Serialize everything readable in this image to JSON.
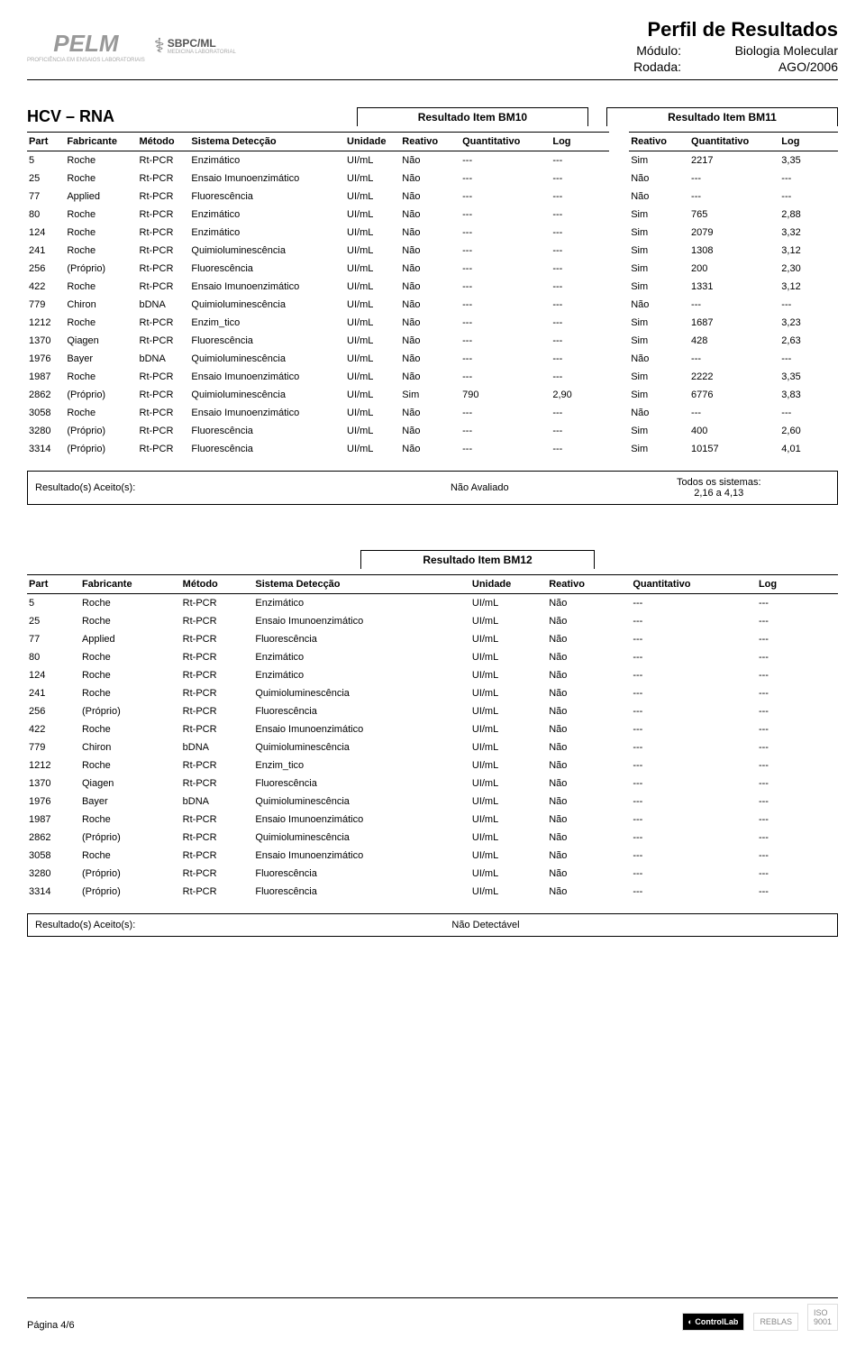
{
  "header": {
    "title": "Perfil de Resultados",
    "module_label": "Módulo:",
    "module_value": "Biologia Molecular",
    "round_label": "Rodada:",
    "round_value": "AGO/2006"
  },
  "section1": {
    "title": "HCV – RNA",
    "group_a_title": "Resultado Item BM10",
    "group_b_title": "Resultado Item BM11",
    "columns": {
      "part": "Part",
      "fabricante": "Fabricante",
      "metodo": "Método",
      "sistema": "Sistema Detecção",
      "unidade": "Unidade",
      "reativo": "Reativo",
      "quantitativo": "Quantitativo",
      "log": "Log"
    },
    "rows": [
      {
        "part": "5",
        "fab": "Roche",
        "met": "Rt-PCR",
        "sis": "Enzimático",
        "uni": "UI/mL",
        "a": {
          "rea": "Não",
          "qua": "---",
          "log": "---"
        },
        "b": {
          "rea": "Sim",
          "qua": "2217",
          "log": "3,35"
        }
      },
      {
        "part": "25",
        "fab": "Roche",
        "met": "Rt-PCR",
        "sis": "Ensaio Imunoenzimático",
        "uni": "UI/mL",
        "a": {
          "rea": "Não",
          "qua": "---",
          "log": "---"
        },
        "b": {
          "rea": "Não",
          "qua": "---",
          "log": "---"
        }
      },
      {
        "part": "77",
        "fab": "Applied",
        "met": "Rt-PCR",
        "sis": "Fluorescência",
        "uni": "UI/mL",
        "a": {
          "rea": "Não",
          "qua": "---",
          "log": "---"
        },
        "b": {
          "rea": "Não",
          "qua": "---",
          "log": "---"
        }
      },
      {
        "part": "80",
        "fab": "Roche",
        "met": "Rt-PCR",
        "sis": "Enzimático",
        "uni": "UI/mL",
        "a": {
          "rea": "Não",
          "qua": "---",
          "log": "---"
        },
        "b": {
          "rea": "Sim",
          "qua": "765",
          "log": "2,88"
        }
      },
      {
        "part": "124",
        "fab": "Roche",
        "met": "Rt-PCR",
        "sis": "Enzimático",
        "uni": "UI/mL",
        "a": {
          "rea": "Não",
          "qua": "---",
          "log": "---"
        },
        "b": {
          "rea": "Sim",
          "qua": "2079",
          "log": "3,32"
        }
      },
      {
        "part": "241",
        "fab": "Roche",
        "met": "Rt-PCR",
        "sis": "Quimioluminescência",
        "uni": "UI/mL",
        "a": {
          "rea": "Não",
          "qua": "---",
          "log": "---"
        },
        "b": {
          "rea": "Sim",
          "qua": "1308",
          "log": "3,12"
        }
      },
      {
        "part": "256",
        "fab": "(Próprio)",
        "met": "Rt-PCR",
        "sis": "Fluorescência",
        "uni": "UI/mL",
        "a": {
          "rea": "Não",
          "qua": "---",
          "log": "---"
        },
        "b": {
          "rea": "Sim",
          "qua": "200",
          "log": "2,30"
        }
      },
      {
        "part": "422",
        "fab": "Roche",
        "met": "Rt-PCR",
        "sis": "Ensaio Imunoenzimático",
        "uni": "UI/mL",
        "a": {
          "rea": "Não",
          "qua": "---",
          "log": "---"
        },
        "b": {
          "rea": "Sim",
          "qua": "1331",
          "log": "3,12"
        }
      },
      {
        "part": "779",
        "fab": "Chiron",
        "met": "bDNA",
        "sis": "Quimioluminescência",
        "uni": "UI/mL",
        "a": {
          "rea": "Não",
          "qua": "---",
          "log": "---"
        },
        "b": {
          "rea": "Não",
          "qua": "---",
          "log": "---"
        }
      },
      {
        "part": "1212",
        "fab": "Roche",
        "met": "Rt-PCR",
        "sis": "Enzim_tico",
        "uni": "UI/mL",
        "a": {
          "rea": "Não",
          "qua": "---",
          "log": "---"
        },
        "b": {
          "rea": "Sim",
          "qua": "1687",
          "log": "3,23"
        }
      },
      {
        "part": "1370",
        "fab": "Qiagen",
        "met": "Rt-PCR",
        "sis": "Fluorescência",
        "uni": "UI/mL",
        "a": {
          "rea": "Não",
          "qua": "---",
          "log": "---"
        },
        "b": {
          "rea": "Sim",
          "qua": "428",
          "log": "2,63"
        }
      },
      {
        "part": "1976",
        "fab": "Bayer",
        "met": "bDNA",
        "sis": "Quimioluminescência",
        "uni": "UI/mL",
        "a": {
          "rea": "Não",
          "qua": "---",
          "log": "---"
        },
        "b": {
          "rea": "Não",
          "qua": "---",
          "log": "---"
        }
      },
      {
        "part": "1987",
        "fab": "Roche",
        "met": "Rt-PCR",
        "sis": "Ensaio Imunoenzimático",
        "uni": "UI/mL",
        "a": {
          "rea": "Não",
          "qua": "---",
          "log": "---"
        },
        "b": {
          "rea": "Sim",
          "qua": "2222",
          "log": "3,35"
        }
      },
      {
        "part": "2862",
        "fab": "(Próprio)",
        "met": "Rt-PCR",
        "sis": "Quimioluminescência",
        "uni": "UI/mL",
        "a": {
          "rea": "Sim",
          "qua": "790",
          "log": "2,90"
        },
        "b": {
          "rea": "Sim",
          "qua": "6776",
          "log": "3,83"
        }
      },
      {
        "part": "3058",
        "fab": "Roche",
        "met": "Rt-PCR",
        "sis": "Ensaio Imunoenzimático",
        "uni": "UI/mL",
        "a": {
          "rea": "Não",
          "qua": "---",
          "log": "---"
        },
        "b": {
          "rea": "Não",
          "qua": "---",
          "log": "---"
        }
      },
      {
        "part": "3280",
        "fab": "(Próprio)",
        "met": "Rt-PCR",
        "sis": "Fluorescência",
        "uni": "UI/mL",
        "a": {
          "rea": "Não",
          "qua": "---",
          "log": "---"
        },
        "b": {
          "rea": "Sim",
          "qua": "400",
          "log": "2,60"
        }
      },
      {
        "part": "3314",
        "fab": "(Próprio)",
        "met": "Rt-PCR",
        "sis": "Fluorescência",
        "uni": "UI/mL",
        "a": {
          "rea": "Não",
          "qua": "---",
          "log": "---"
        },
        "b": {
          "rea": "Sim",
          "qua": "10157",
          "log": "4,01"
        }
      }
    ],
    "accepted": {
      "label": "Resultado(s) Aceito(s):",
      "mid": "Não Avaliado",
      "right_line1": "Todos os sistemas:",
      "right_line2": "2,16 a 4,13"
    }
  },
  "section2": {
    "group_title": "Resultado Item BM12",
    "columns": {
      "part": "Part",
      "fabricante": "Fabricante",
      "metodo": "Método",
      "sistema": "Sistema Detecção",
      "unidade": "Unidade",
      "reativo": "Reativo",
      "quantitativo": "Quantitativo",
      "log": "Log"
    },
    "rows": [
      {
        "part": "5",
        "fab": "Roche",
        "met": "Rt-PCR",
        "sis": "Enzimático",
        "uni": "UI/mL",
        "rea": "Não",
        "qua": "---",
        "log": "---"
      },
      {
        "part": "25",
        "fab": "Roche",
        "met": "Rt-PCR",
        "sis": "Ensaio Imunoenzimático",
        "uni": "UI/mL",
        "rea": "Não",
        "qua": "---",
        "log": "---"
      },
      {
        "part": "77",
        "fab": "Applied",
        "met": "Rt-PCR",
        "sis": "Fluorescência",
        "uni": "UI/mL",
        "rea": "Não",
        "qua": "---",
        "log": "---"
      },
      {
        "part": "80",
        "fab": "Roche",
        "met": "Rt-PCR",
        "sis": "Enzimático",
        "uni": "UI/mL",
        "rea": "Não",
        "qua": "---",
        "log": "---"
      },
      {
        "part": "124",
        "fab": "Roche",
        "met": "Rt-PCR",
        "sis": "Enzimático",
        "uni": "UI/mL",
        "rea": "Não",
        "qua": "---",
        "log": "---"
      },
      {
        "part": "241",
        "fab": "Roche",
        "met": "Rt-PCR",
        "sis": "Quimioluminescência",
        "uni": "UI/mL",
        "rea": "Não",
        "qua": "---",
        "log": "---"
      },
      {
        "part": "256",
        "fab": "(Próprio)",
        "met": "Rt-PCR",
        "sis": "Fluorescência",
        "uni": "UI/mL",
        "rea": "Não",
        "qua": "---",
        "log": "---"
      },
      {
        "part": "422",
        "fab": "Roche",
        "met": "Rt-PCR",
        "sis": "Ensaio Imunoenzimático",
        "uni": "UI/mL",
        "rea": "Não",
        "qua": "---",
        "log": "---"
      },
      {
        "part": "779",
        "fab": "Chiron",
        "met": "bDNA",
        "sis": "Quimioluminescência",
        "uni": "UI/mL",
        "rea": "Não",
        "qua": "---",
        "log": "---"
      },
      {
        "part": "1212",
        "fab": "Roche",
        "met": "Rt-PCR",
        "sis": "Enzim_tico",
        "uni": "UI/mL",
        "rea": "Não",
        "qua": "---",
        "log": "---"
      },
      {
        "part": "1370",
        "fab": "Qiagen",
        "met": "Rt-PCR",
        "sis": "Fluorescência",
        "uni": "UI/mL",
        "rea": "Não",
        "qua": "---",
        "log": "---"
      },
      {
        "part": "1976",
        "fab": "Bayer",
        "met": "bDNA",
        "sis": "Quimioluminescência",
        "uni": "UI/mL",
        "rea": "Não",
        "qua": "---",
        "log": "---"
      },
      {
        "part": "1987",
        "fab": "Roche",
        "met": "Rt-PCR",
        "sis": "Ensaio Imunoenzimático",
        "uni": "UI/mL",
        "rea": "Não",
        "qua": "---",
        "log": "---"
      },
      {
        "part": "2862",
        "fab": "(Próprio)",
        "met": "Rt-PCR",
        "sis": "Quimioluminescência",
        "uni": "UI/mL",
        "rea": "Não",
        "qua": "---",
        "log": "---"
      },
      {
        "part": "3058",
        "fab": "Roche",
        "met": "Rt-PCR",
        "sis": "Ensaio Imunoenzimático",
        "uni": "UI/mL",
        "rea": "Não",
        "qua": "---",
        "log": "---"
      },
      {
        "part": "3280",
        "fab": "(Próprio)",
        "met": "Rt-PCR",
        "sis": "Fluorescência",
        "uni": "UI/mL",
        "rea": "Não",
        "qua": "---",
        "log": "---"
      },
      {
        "part": "3314",
        "fab": "(Próprio)",
        "met": "Rt-PCR",
        "sis": "Fluorescência",
        "uni": "UI/mL",
        "rea": "Não",
        "qua": "---",
        "log": "---"
      }
    ],
    "accepted": {
      "label": "Resultado(s) Aceito(s):",
      "value": "Não Detectável"
    }
  },
  "footer": {
    "page": "Página 4/6"
  }
}
